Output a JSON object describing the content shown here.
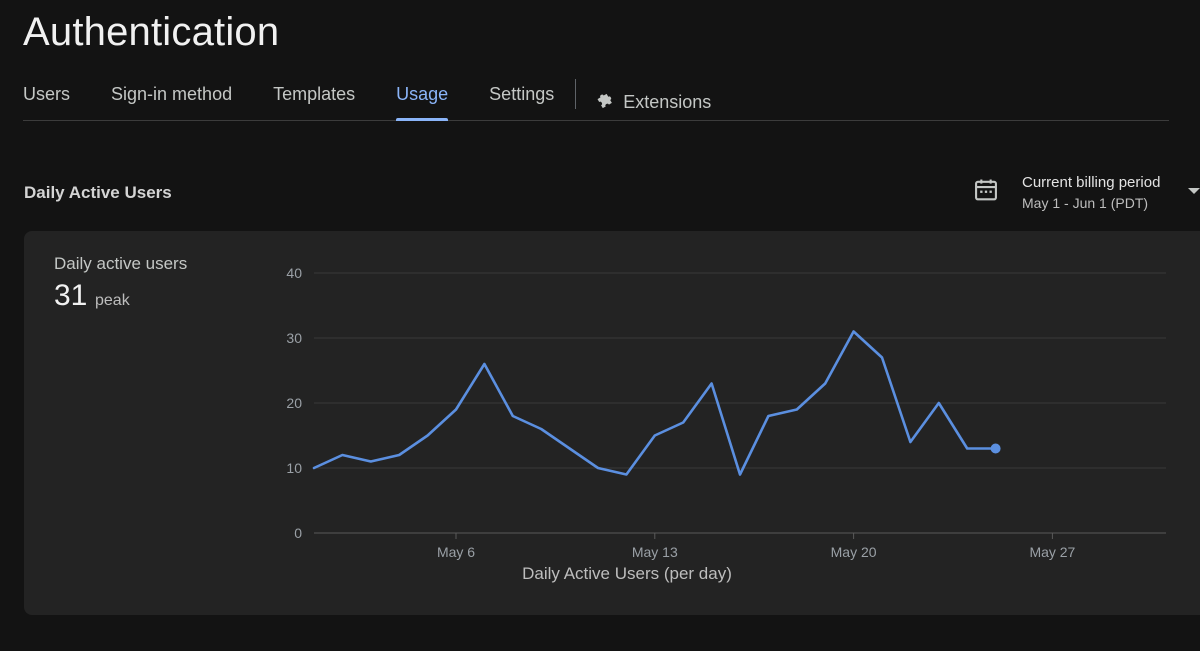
{
  "page": {
    "title": "Authentication"
  },
  "tabs": [
    {
      "label": "Users",
      "active": false
    },
    {
      "label": "Sign-in method",
      "active": false
    },
    {
      "label": "Templates",
      "active": false
    },
    {
      "label": "Usage",
      "active": true
    },
    {
      "label": "Settings",
      "active": false
    }
  ],
  "extensions_tab": {
    "label": "Extensions",
    "icon": "puzzle-icon"
  },
  "section": {
    "title": "Daily Active Users"
  },
  "billing": {
    "label": "Current billing period",
    "range": "May 1 - Jun 1 (PDT)",
    "icon": "calendar-icon"
  },
  "metric": {
    "label": "Daily active users",
    "value": "31",
    "unit": "peak"
  },
  "colors": {
    "accent": "#8ab4f8",
    "line": "#5b8fe0",
    "background": "#131313",
    "card": "#232323"
  },
  "chart_data": {
    "type": "line",
    "xlabel": "Daily Active Users (per day)",
    "ylabel": "",
    "ylim": [
      0,
      40
    ],
    "yticks": [
      0,
      10,
      20,
      30,
      40
    ],
    "xlim": [
      "2025-05-01",
      "2025-05-31"
    ],
    "xticks": [
      {
        "date": "2025-05-06",
        "label": "May 6"
      },
      {
        "date": "2025-05-13",
        "label": "May 13"
      },
      {
        "date": "2025-05-20",
        "label": "May 20"
      },
      {
        "date": "2025-05-27",
        "label": "May 27"
      }
    ],
    "grid": true,
    "series": [
      {
        "x": [
          "2025-05-01",
          "2025-05-02",
          "2025-05-03",
          "2025-05-04",
          "2025-05-05",
          "2025-05-06",
          "2025-05-07",
          "2025-05-08",
          "2025-05-09",
          "2025-05-10",
          "2025-05-11",
          "2025-05-12",
          "2025-05-13",
          "2025-05-14",
          "2025-05-15",
          "2025-05-16",
          "2025-05-17",
          "2025-05-18",
          "2025-05-19",
          "2025-05-20",
          "2025-05-21",
          "2025-05-22",
          "2025-05-23",
          "2025-05-24",
          "2025-05-25"
        ],
        "values": [
          10,
          12,
          11,
          12,
          15,
          19,
          26,
          18,
          16,
          13,
          10,
          9,
          15,
          17,
          23,
          9,
          18,
          19,
          23,
          31,
          27,
          14,
          20,
          13,
          13
        ]
      }
    ]
  }
}
